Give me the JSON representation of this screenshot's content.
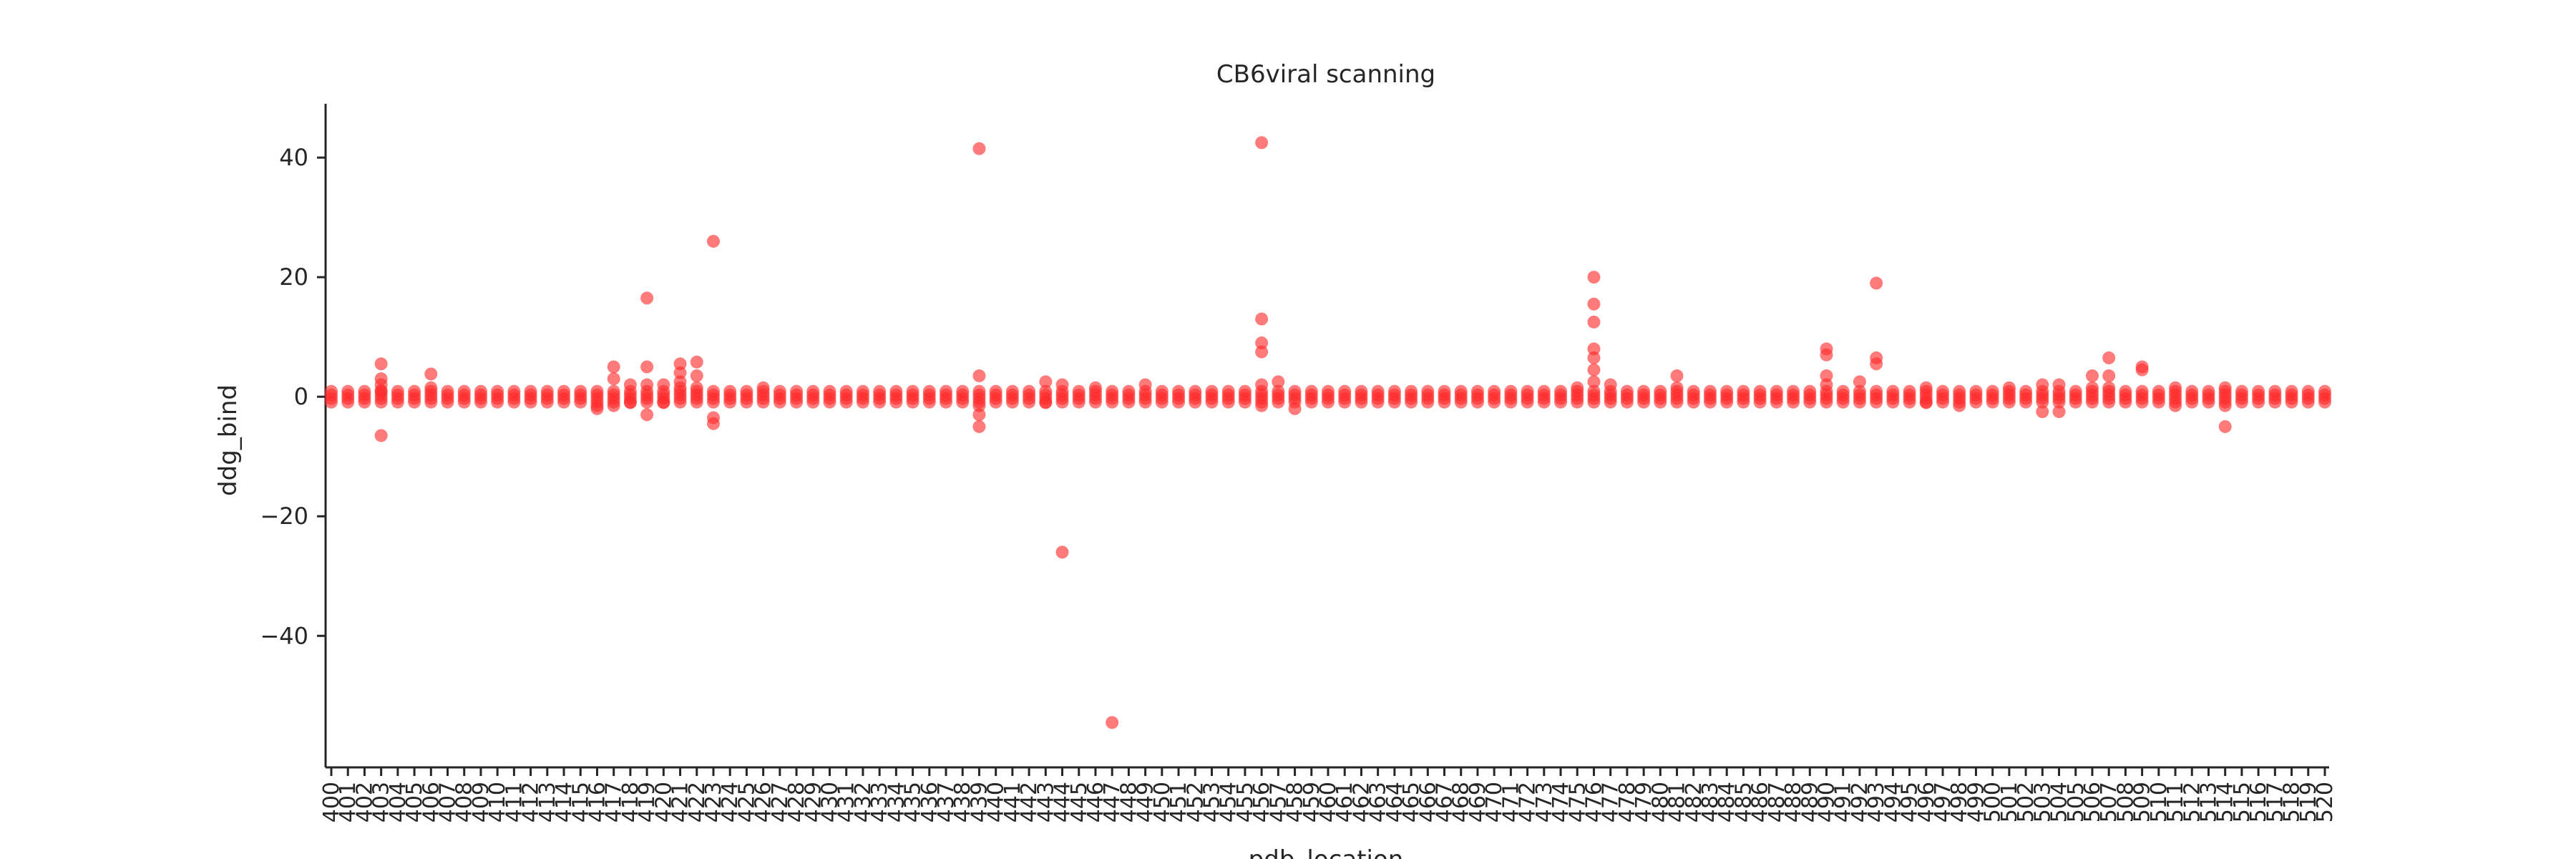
{
  "chart_data": {
    "type": "scatter",
    "title": "CB6viral scanning",
    "xlabel": "pdb_location",
    "ylabel": "ddg_bind",
    "ylim": [
      -62,
      49
    ],
    "yticks": [
      -40,
      -20,
      0,
      20,
      40
    ],
    "grid": false,
    "legend": "none",
    "color": "#ff2a2a",
    "x_categories": [
      "400",
      "401",
      "402",
      "403",
      "404",
      "405",
      "406",
      "407",
      "408",
      "409",
      "410",
      "411",
      "412",
      "413",
      "414",
      "415",
      "416",
      "417",
      "418",
      "419",
      "420",
      "421",
      "422",
      "423",
      "424",
      "425",
      "426",
      "427",
      "428",
      "429",
      "430",
      "431",
      "432",
      "433",
      "434",
      "435",
      "436",
      "437",
      "438",
      "439",
      "440",
      "441",
      "442",
      "443",
      "444",
      "445",
      "446",
      "447",
      "448",
      "449",
      "450",
      "451",
      "452",
      "453",
      "454",
      "455",
      "456",
      "457",
      "458",
      "459",
      "460",
      "461",
      "462",
      "463",
      "464",
      "465",
      "466",
      "467",
      "468",
      "469",
      "470",
      "471",
      "472",
      "473",
      "474",
      "475",
      "476",
      "477",
      "478",
      "479",
      "480",
      "481",
      "482",
      "483",
      "484",
      "485",
      "486",
      "487",
      "488",
      "489",
      "490",
      "491",
      "492",
      "493",
      "494",
      "495",
      "496",
      "497",
      "498",
      "499",
      "500",
      "501",
      "502",
      "503",
      "504",
      "505",
      "506",
      "507",
      "508",
      "509",
      "510",
      "511",
      "512",
      "513",
      "514",
      "515",
      "516",
      "517",
      "518",
      "519",
      "520"
    ],
    "points": [
      {
        "x": "403",
        "y": 5.5
      },
      {
        "x": "403",
        "y": 3.0
      },
      {
        "x": "403",
        "y": 2.0
      },
      {
        "x": "403",
        "y": 1.0
      },
      {
        "x": "403",
        "y": -6.5
      },
      {
        "x": "406",
        "y": 3.8
      },
      {
        "x": "406",
        "y": 1.5
      },
      {
        "x": "416",
        "y": -2.0
      },
      {
        "x": "416",
        "y": -1.5
      },
      {
        "x": "417",
        "y": 5.0
      },
      {
        "x": "417",
        "y": 3.0
      },
      {
        "x": "417",
        "y": -1.5
      },
      {
        "x": "418",
        "y": 2.0
      },
      {
        "x": "418",
        "y": -1.0
      },
      {
        "x": "419",
        "y": 16.5
      },
      {
        "x": "419",
        "y": 5.0
      },
      {
        "x": "419",
        "y": 2.0
      },
      {
        "x": "419",
        "y": -3.0
      },
      {
        "x": "420",
        "y": 2.0
      },
      {
        "x": "420",
        "y": -1.0
      },
      {
        "x": "421",
        "y": 5.5
      },
      {
        "x": "421",
        "y": 4.0
      },
      {
        "x": "421",
        "y": 2.5
      },
      {
        "x": "421",
        "y": 1.5
      },
      {
        "x": "422",
        "y": 5.8
      },
      {
        "x": "422",
        "y": 3.5
      },
      {
        "x": "422",
        "y": 1.5
      },
      {
        "x": "423",
        "y": 26.0
      },
      {
        "x": "423",
        "y": -3.5
      },
      {
        "x": "423",
        "y": -4.5
      },
      {
        "x": "426",
        "y": 1.5
      },
      {
        "x": "439",
        "y": 41.5
      },
      {
        "x": "439",
        "y": 3.5
      },
      {
        "x": "439",
        "y": -1.5
      },
      {
        "x": "439",
        "y": -3.0
      },
      {
        "x": "439",
        "y": -5.0
      },
      {
        "x": "443",
        "y": 2.5
      },
      {
        "x": "443",
        "y": -1.0
      },
      {
        "x": "444",
        "y": 2.0
      },
      {
        "x": "444",
        "y": -26.0
      },
      {
        "x": "446",
        "y": 1.5
      },
      {
        "x": "447",
        "y": -54.5
      },
      {
        "x": "449",
        "y": 2.0
      },
      {
        "x": "456",
        "y": 42.5
      },
      {
        "x": "456",
        "y": 13.0
      },
      {
        "x": "456",
        "y": 9.0
      },
      {
        "x": "456",
        "y": 7.5
      },
      {
        "x": "456",
        "y": 2.0
      },
      {
        "x": "456",
        "y": -1.5
      },
      {
        "x": "457",
        "y": 2.5
      },
      {
        "x": "458",
        "y": -2.0
      },
      {
        "x": "475",
        "y": 1.5
      },
      {
        "x": "476",
        "y": 20.0
      },
      {
        "x": "476",
        "y": 15.5
      },
      {
        "x": "476",
        "y": 12.5
      },
      {
        "x": "476",
        "y": 8.0
      },
      {
        "x": "476",
        "y": 6.5
      },
      {
        "x": "476",
        "y": 4.5
      },
      {
        "x": "476",
        "y": 2.5
      },
      {
        "x": "477",
        "y": 2.0
      },
      {
        "x": "481",
        "y": 3.5
      },
      {
        "x": "481",
        "y": 1.5
      },
      {
        "x": "490",
        "y": 8.0
      },
      {
        "x": "490",
        "y": 7.0
      },
      {
        "x": "490",
        "y": 3.5
      },
      {
        "x": "490",
        "y": 2.0
      },
      {
        "x": "492",
        "y": 2.5
      },
      {
        "x": "493",
        "y": 19.0
      },
      {
        "x": "493",
        "y": 6.5
      },
      {
        "x": "493",
        "y": 5.5
      },
      {
        "x": "496",
        "y": 1.5
      },
      {
        "x": "496",
        "y": -1.0
      },
      {
        "x": "498",
        "y": -1.5
      },
      {
        "x": "501",
        "y": 1.5
      },
      {
        "x": "503",
        "y": 2.0
      },
      {
        "x": "503",
        "y": -2.5
      },
      {
        "x": "504",
        "y": 2.0
      },
      {
        "x": "504",
        "y": -2.5
      },
      {
        "x": "506",
        "y": 3.5
      },
      {
        "x": "506",
        "y": 1.5
      },
      {
        "x": "507",
        "y": 6.5
      },
      {
        "x": "507",
        "y": 3.5
      },
      {
        "x": "507",
        "y": 1.5
      },
      {
        "x": "509",
        "y": 5.0
      },
      {
        "x": "509",
        "y": 4.5
      },
      {
        "x": "511",
        "y": 1.5
      },
      {
        "x": "511",
        "y": -1.5
      },
      {
        "x": "514",
        "y": 1.5
      },
      {
        "x": "514",
        "y": -1.5
      },
      {
        "x": "514",
        "y": -5.0
      }
    ]
  }
}
